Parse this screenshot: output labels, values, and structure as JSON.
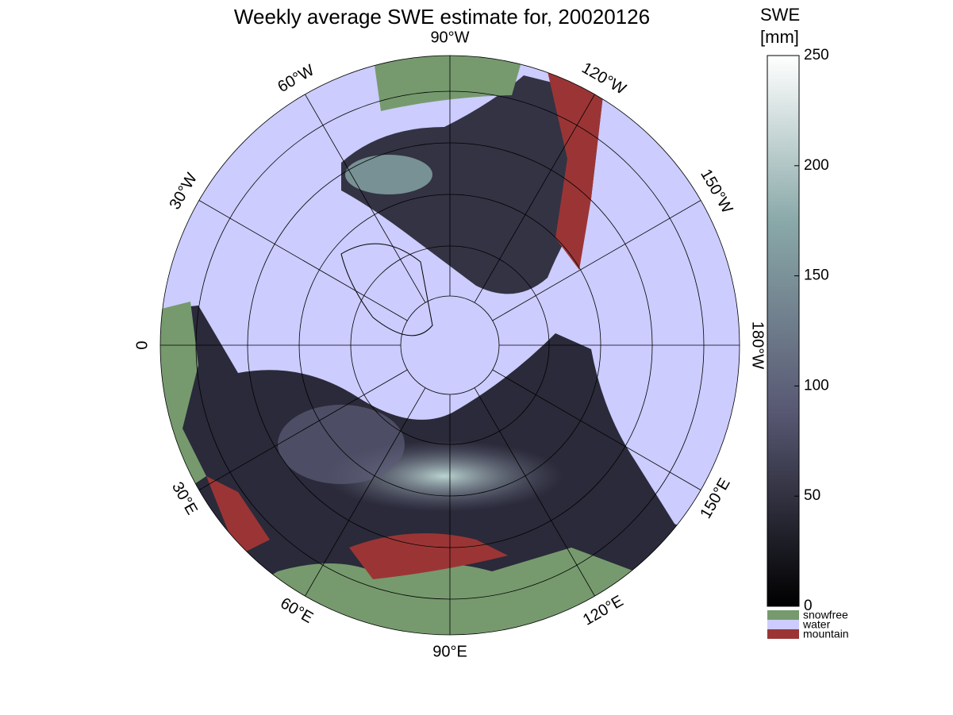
{
  "title": "Weekly average SWE estimate for, 20020126",
  "meridians": [
    "90°W",
    "120°W",
    "150°W",
    "180°W",
    "150°E",
    "120°E",
    "90°E",
    "60°E",
    "30°E",
    "0",
    "30°W",
    "60°W"
  ],
  "colorbar": {
    "label": [
      "SWE",
      "[mm]"
    ],
    "range": [
      0,
      250
    ],
    "ticks": [
      0,
      50,
      100,
      150,
      200,
      250
    ]
  },
  "legend": [
    {
      "name": "snowfree",
      "color": "#769a6e"
    },
    {
      "name": "water",
      "color": "#ccccff"
    },
    {
      "name": "mountain",
      "color": "#9b3535"
    }
  ]
}
